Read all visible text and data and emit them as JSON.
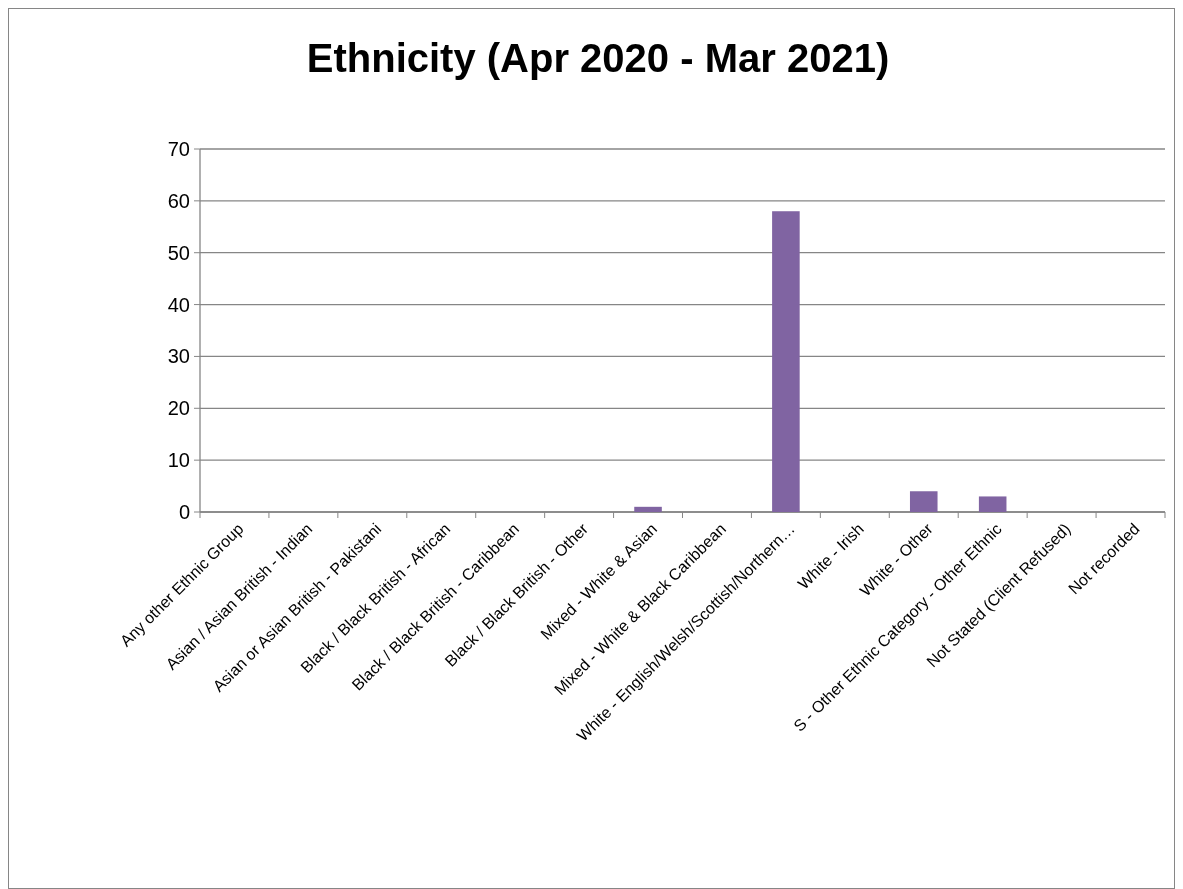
{
  "chart_data": {
    "type": "bar",
    "title": "Ethnicity (Apr 2020 - Mar 2021)",
    "categories": [
      "Any other Ethnic Group",
      "Asian / Asian British - Indian",
      "Asian or Asian British - Pakistani",
      "Black / Black British - African",
      "Black / Black British - Caribbean",
      "Black / Black British - Other",
      "Mixed - White & Asian",
      "Mixed - White & Black Caribbean",
      "White - English/Welsh/Scottish/Northern…",
      "White - Irish",
      "White - Other",
      "S - Other Ethnic Category - Other Ethnic",
      "Not Stated (Client Refused)",
      "Not recorded"
    ],
    "values": [
      0,
      0,
      0,
      0,
      0,
      0,
      1,
      0,
      58,
      0,
      4,
      3,
      0,
      0
    ],
    "color": "#8064a2",
    "ylim": [
      0,
      70
    ],
    "yticks": [
      0,
      10,
      20,
      30,
      40,
      50,
      60,
      70
    ],
    "grid": "y"
  }
}
